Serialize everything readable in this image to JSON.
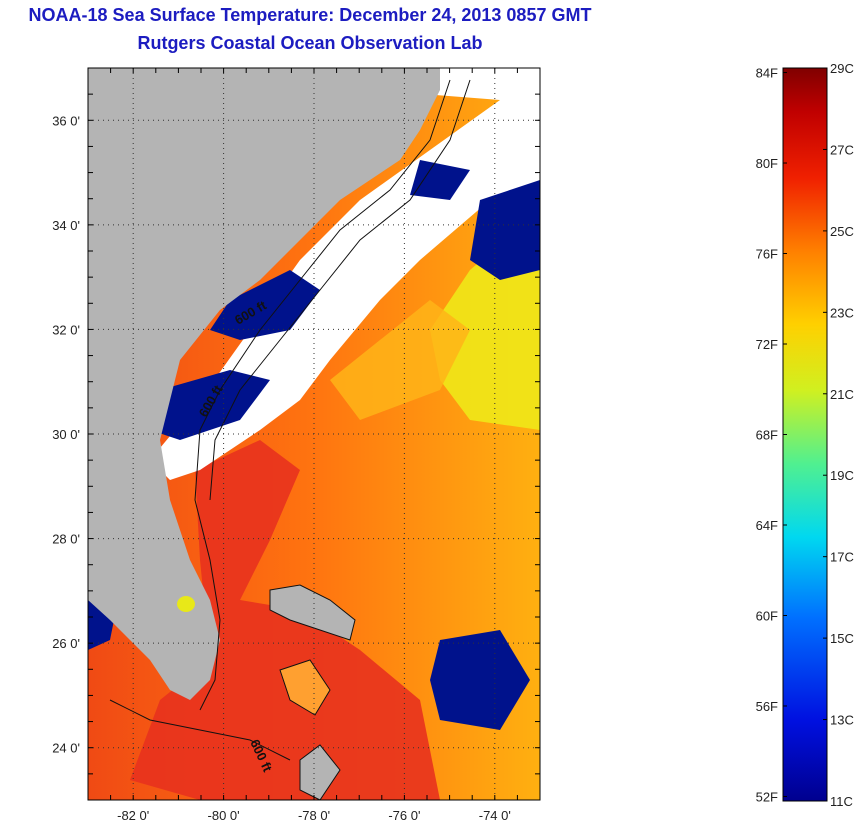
{
  "header": {
    "title": "NOAA-18 Sea Surface Temperature:  December 24, 2013 0857 GMT",
    "subtitle": "Rutgers Coastal Ocean Observation Lab"
  },
  "map": {
    "lon_range": [
      -83,
      -73
    ],
    "lat_range": [
      23,
      37
    ],
    "x_ticks": [
      "-82 0'",
      "-80 0'",
      "-78 0'",
      "-76 0'",
      "-74 0'"
    ],
    "y_ticks": [
      "36 0'",
      "34 0'",
      "32 0'",
      "30 0'",
      "28 0'",
      "26 0'",
      "24 0'"
    ],
    "isobath_labels": [
      "600 ft",
      "600 ft",
      "600 ft"
    ],
    "colors": {
      "land": "#b4b4b4",
      "cloud": "#ffffff",
      "cold": "#00128c",
      "gulf_stream": "#e8321e",
      "warm": "#ff7a10",
      "mid": "#f0e818"
    }
  },
  "colorbar": {
    "celsius_labels": [
      "29C",
      "27C",
      "25C",
      "23C",
      "21C",
      "19C",
      "17C",
      "15C",
      "13C",
      "11C"
    ],
    "fahrenheit_labels": [
      "84F",
      "80F",
      "76F",
      "72F",
      "68F",
      "64F",
      "60F",
      "56F",
      "52F"
    ],
    "range_c": [
      11,
      29
    ]
  }
}
